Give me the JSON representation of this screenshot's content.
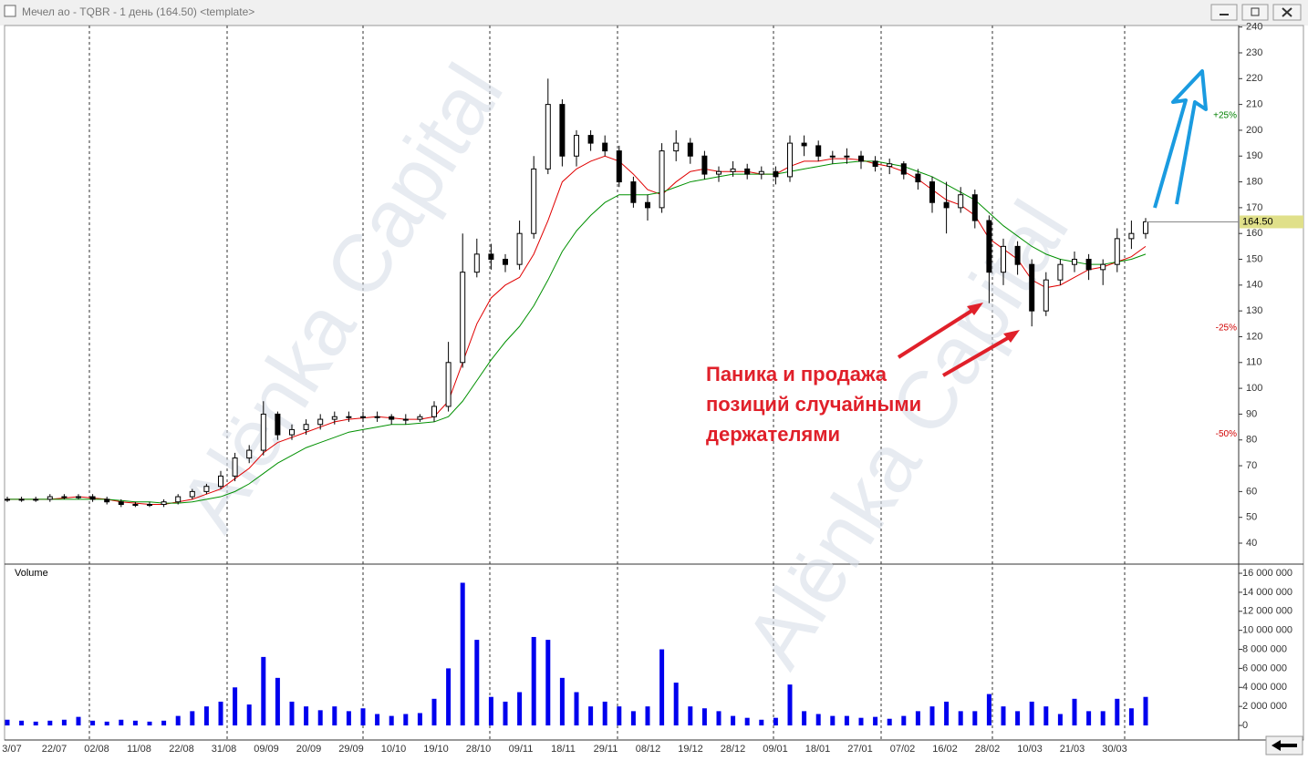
{
  "window": {
    "title": "Мечел ао - TQBR - 1 день (164.50) <template>",
    "watermark": "Alёnka Capital"
  },
  "chart_data": [
    {
      "type": "candlestick",
      "x_labels": [
        "3/07",
        "22/07",
        "02/08",
        "11/08",
        "22/08",
        "31/08",
        "09/09",
        "20/09",
        "29/09",
        "10/10",
        "19/10",
        "28/10",
        "09/11",
        "18/11",
        "29/11",
        "08/12",
        "19/12",
        "28/12",
        "09/01",
        "18/01",
        "27/01",
        "07/02",
        "16/02",
        "28/02",
        "10/03",
        "21/03",
        "30/03"
      ],
      "open": [
        57,
        57,
        57,
        57,
        58,
        58,
        58,
        57,
        56,
        55,
        55,
        55,
        56,
        58,
        60,
        62,
        66,
        73,
        76,
        90,
        82,
        84,
        86,
        88,
        89,
        89,
        89,
        89,
        88,
        88,
        89,
        93,
        110,
        145,
        152,
        150,
        148,
        160,
        185,
        210,
        190,
        198,
        195,
        192,
        180,
        172,
        170,
        192,
        195,
        190,
        183,
        184,
        185,
        183,
        184,
        182,
        195,
        194,
        190,
        190,
        190,
        188,
        186,
        187,
        183,
        180,
        172,
        170,
        175,
        165,
        145,
        155,
        148,
        130,
        142,
        148,
        150,
        146,
        148,
        158,
        160
      ],
      "high": [
        58,
        58,
        58,
        59,
        59,
        59,
        59,
        58,
        57,
        56,
        56,
        57,
        59,
        61,
        63,
        68,
        75,
        78,
        95,
        91,
        86,
        88,
        90,
        91,
        91,
        91,
        91,
        90,
        90,
        90,
        95,
        118,
        160,
        158,
        156,
        152,
        165,
        190,
        220,
        212,
        200,
        200,
        198,
        194,
        182,
        175,
        195,
        200,
        197,
        192,
        186,
        188,
        187,
        186,
        186,
        198,
        198,
        196,
        192,
        193,
        192,
        190,
        189,
        188,
        185,
        182,
        180,
        178,
        177,
        167,
        158,
        157,
        150,
        145,
        150,
        153,
        152,
        150,
        162,
        165,
        166
      ],
      "low": [
        56,
        56,
        56,
        56,
        57,
        57,
        56,
        55,
        54,
        54,
        54,
        54,
        55,
        57,
        59,
        61,
        64,
        71,
        74,
        80,
        80,
        82,
        84,
        86,
        87,
        87,
        87,
        86,
        86,
        87,
        87,
        91,
        108,
        143,
        146,
        145,
        146,
        158,
        183,
        186,
        186,
        192,
        190,
        178,
        170,
        165,
        168,
        188,
        187,
        181,
        180,
        182,
        181,
        181,
        179,
        180,
        190,
        188,
        187,
        187,
        185,
        184,
        183,
        181,
        177,
        168,
        160,
        168,
        162,
        133,
        140,
        144,
        124,
        128,
        140,
        145,
        142,
        140,
        145,
        154,
        158
      ],
      "close": [
        57,
        57,
        57,
        58,
        58,
        58,
        57,
        56,
        55,
        55,
        55,
        56,
        58,
        60,
        62,
        66,
        73,
        76,
        90,
        82,
        84,
        86,
        88,
        89,
        89,
        89,
        89,
        88,
        88,
        89,
        93,
        110,
        145,
        152,
        150,
        148,
        160,
        185,
        210,
        190,
        198,
        195,
        192,
        180,
        172,
        170,
        192,
        195,
        190,
        183,
        184,
        185,
        183,
        184,
        182,
        195,
        194,
        190,
        190,
        190,
        188,
        186,
        187,
        183,
        180,
        172,
        170,
        175,
        165,
        145,
        155,
        148,
        130,
        142,
        148,
        150,
        146,
        148,
        158,
        160,
        164.5
      ],
      "series": [
        {
          "color": "#e00000",
          "values": [
            57,
            57,
            57,
            57,
            57.5,
            58,
            57.5,
            57,
            56,
            55.5,
            55,
            55,
            56,
            57,
            59,
            61,
            65,
            69,
            75,
            79,
            81,
            83,
            85,
            87,
            88,
            88.5,
            89,
            88.5,
            88,
            88,
            89,
            95,
            110,
            125,
            135,
            140,
            143,
            152,
            165,
            180,
            185,
            188,
            190,
            188,
            183,
            177,
            175,
            180,
            184,
            185,
            184,
            184,
            184,
            183,
            183,
            186,
            188,
            188,
            189,
            189,
            188.5,
            187,
            186,
            184,
            181,
            177,
            173,
            171,
            167,
            158,
            154,
            150,
            142,
            139,
            140,
            143,
            146,
            147,
            149,
            151,
            155
          ]
        },
        {
          "color": "#009000",
          "values": [
            57,
            57,
            57,
            57,
            57,
            57,
            57,
            57,
            56.5,
            56,
            56,
            55.5,
            55.5,
            56,
            57,
            58,
            60,
            63,
            67,
            71,
            74,
            77,
            79,
            81,
            83,
            84,
            85,
            86,
            86,
            86.5,
            87,
            89,
            95,
            103,
            111,
            118,
            124,
            132,
            142,
            153,
            161,
            167,
            172,
            175,
            175,
            175,
            176,
            178,
            180,
            181,
            182,
            183,
            183,
            183,
            183,
            184,
            185,
            186,
            187,
            187.5,
            188,
            188,
            187,
            186,
            184,
            182,
            179,
            176,
            173,
            168,
            163,
            159,
            155,
            152,
            150,
            149,
            148,
            148,
            149,
            150,
            152
          ]
        }
      ],
      "ylim": [
        34,
        242
      ],
      "yticks": [
        40,
        50,
        60,
        70,
        80,
        90,
        100,
        110,
        120,
        130,
        140,
        150,
        160,
        170,
        180,
        190,
        200,
        210,
        220,
        230,
        240
      ],
      "last_value": 164.5,
      "last_value_label": "164.50",
      "levels": [
        {
          "value": 25,
          "label": "+25%"
        },
        {
          "value": -25,
          "label": "-25%"
        },
        {
          "value": -50,
          "label": "-50%"
        }
      ],
      "annotation": [
        "Паника и продажа",
        "позиций случайными",
        "держателями"
      ]
    },
    {
      "type": "bar",
      "title": "Volume",
      "color": "#0000ee",
      "values": [
        600000,
        500000,
        400000,
        500000,
        600000,
        900000,
        500000,
        400000,
        600000,
        500000,
        400000,
        500000,
        1000000,
        1500000,
        2000000,
        2500000,
        4000000,
        2200000,
        7200000,
        5000000,
        2500000,
        2000000,
        1600000,
        2000000,
        1500000,
        1800000,
        1200000,
        1000000,
        1200000,
        1300000,
        2800000,
        6000000,
        15000000,
        9000000,
        3000000,
        2500000,
        3500000,
        9300000,
        9000000,
        5000000,
        3500000,
        2000000,
        2500000,
        2000000,
        1500000,
        2000000,
        8000000,
        4500000,
        2000000,
        1800000,
        1500000,
        1000000,
        800000,
        600000,
        800000,
        4300000,
        1500000,
        1200000,
        1000000,
        1000000,
        800000,
        900000,
        700000,
        1000000,
        1500000,
        2000000,
        2500000,
        1500000,
        1500000,
        3300000,
        2000000,
        1500000,
        2500000,
        2000000,
        1200000,
        2800000,
        1500000,
        1500000,
        2800000,
        1800000,
        3000000
      ],
      "ylim": [
        -1530000,
        16770000
      ],
      "yticks": [
        0,
        {
          "value": 2000000,
          "label": "2 000 000"
        },
        {
          "value": 4000000,
          "label": "4 000 000"
        },
        {
          "value": 6000000,
          "label": "6 000 000"
        },
        {
          "value": 8000000,
          "label": "8 000 000"
        },
        {
          "value": 10000000,
          "label": "10 000 000"
        },
        {
          "value": 12000000,
          "label": "12 000 000"
        },
        {
          "value": 14000000,
          "label": "14 000 000"
        },
        {
          "value": 16000000,
          "label": "16 000 000"
        }
      ]
    }
  ]
}
